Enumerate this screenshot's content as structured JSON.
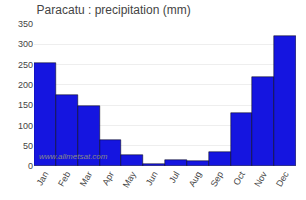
{
  "chart_data": {
    "type": "bar",
    "title": "Paracatu : precipitation (mm)",
    "categories": [
      "Jan",
      "Feb",
      "Mar",
      "Apr",
      "May",
      "Jun",
      "Jul",
      "Aug",
      "Sep",
      "Oct",
      "Nov",
      "Dec"
    ],
    "values": [
      255,
      175,
      147,
      65,
      27,
      5,
      15,
      13,
      35,
      130,
      220,
      320
    ],
    "color": "#1515e0",
    "ylim": [
      0,
      350
    ],
    "yticks": [
      0,
      50,
      100,
      150,
      200,
      250,
      300,
      350
    ],
    "grid": true,
    "annotations": [
      "www.allmetsat.com"
    ]
  }
}
